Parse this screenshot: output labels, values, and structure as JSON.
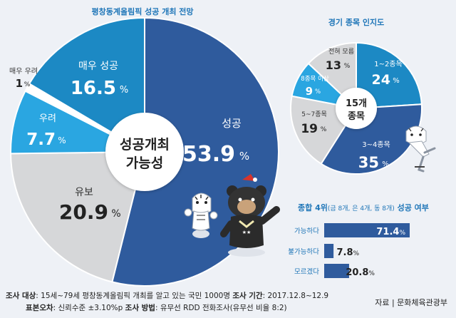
{
  "chart_data": [
    {
      "type": "pie",
      "title": "평창동계올림픽 성공 개최 전망",
      "center_label": [
        "성공개최",
        "가능성"
      ],
      "slices": [
        {
          "label": "성공",
          "value": 53.9,
          "value_text": "53.9",
          "color": "#2f5b9d"
        },
        {
          "label": "유보",
          "value": 20.9,
          "value_text": "20.9",
          "color": "#d6d7d9"
        },
        {
          "label": "우려",
          "value": 7.7,
          "value_text": "7.7",
          "color": "#2aa6e1"
        },
        {
          "label": "매우 우려",
          "value": 1,
          "value_text": "1",
          "color": "#ffffff"
        },
        {
          "label": "매우 성공",
          "value": 16.5,
          "value_text": "16.5",
          "color": "#1c89c4"
        }
      ],
      "unit": "%"
    },
    {
      "type": "pie",
      "title": "경기 종목 인지도",
      "center_label": [
        "15개",
        "종목"
      ],
      "slices": [
        {
          "label": "1~2종목",
          "value": 24,
          "value_text": "24",
          "color": "#1c89c4"
        },
        {
          "label": "3~4종목",
          "value": 35,
          "value_text": "35",
          "color": "#2f5b9d"
        },
        {
          "label": "5~7종목",
          "value": 19,
          "value_text": "19",
          "color": "#d6d7d9"
        },
        {
          "label": "8종목 이상",
          "value": 9,
          "value_text": "9",
          "color": "#2aa6e1"
        },
        {
          "label": "전혀 모름",
          "value": 13,
          "value_text": "13",
          "color": "#d6d7d9"
        }
      ],
      "unit": "%"
    },
    {
      "type": "bar",
      "orientation": "horizontal",
      "title": "종합 4위",
      "title_sub": "(금 8개, 은 4개, 동 8개)",
      "title_suffix": "성공 여부",
      "categories": [
        "가능하다",
        "불가능하다",
        "모르겠다"
      ],
      "values": [
        71.4,
        7.8,
        20.8
      ],
      "value_texts": [
        "71.4",
        "7.8",
        "20.8"
      ],
      "unit": "%",
      "color": "#2f5b9d"
    }
  ],
  "footer": {
    "survey_target_label": "조사 대상",
    "survey_target": ": 15세~79세 평창동계올림픽 개최를 알고 있는 국민 1000명",
    "survey_period_label": "조사 기간",
    "survey_period": ": 2017.12.8~12.9",
    "error_label": "표본오차",
    "error": ": 신뢰수준 ±3.10%p",
    "method_label": "조사 방법",
    "method": ": 유무선 RDD 전화조사(유무선 비율 8:2)",
    "source": "자료 | 문화체육관광부"
  }
}
